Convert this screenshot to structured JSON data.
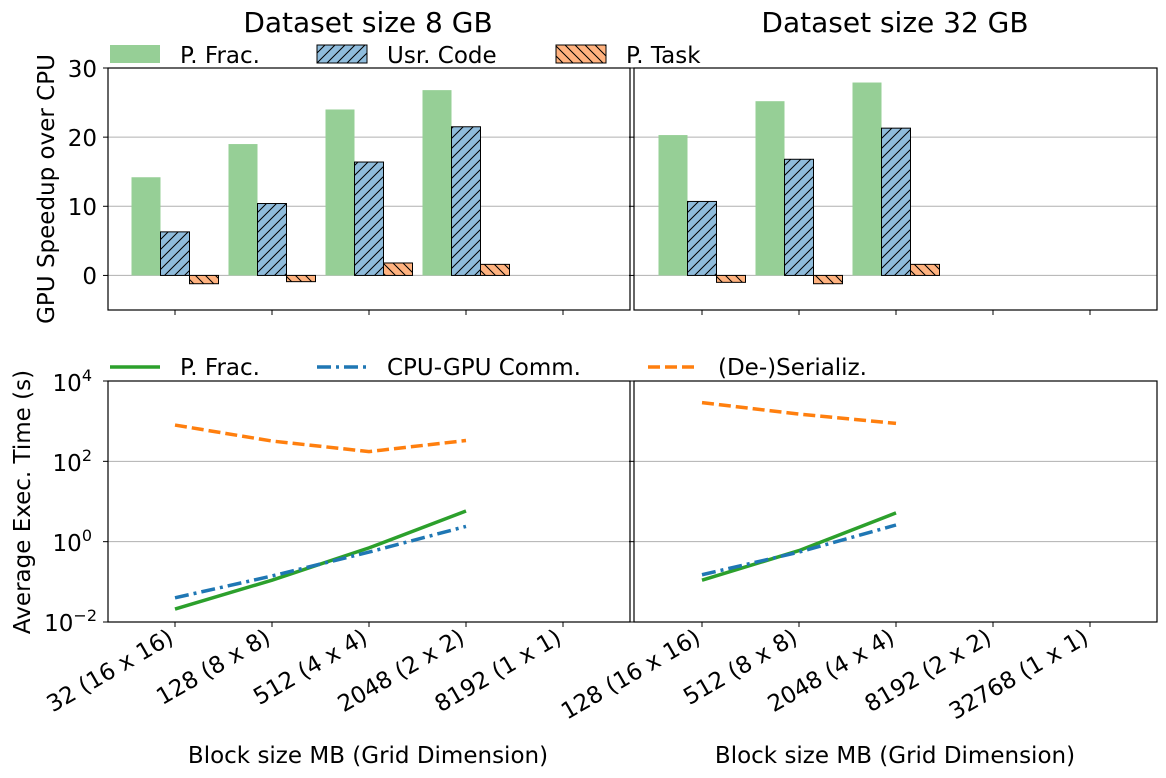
{
  "chart_data": [
    {
      "type": "bar",
      "panel": "top-left",
      "title": "Dataset size 8 GB",
      "ylabel": "GPU Speedup over CPU",
      "ylim": [
        -5,
        30
      ],
      "yticks": [
        0,
        10,
        20,
        30
      ],
      "grid": "y",
      "categories": [
        "32 (16 x 16)",
        "128 (8 x 8)",
        "512 (4 x 4)",
        "2048 (2 x 2)",
        "8192 (1 x 1)"
      ],
      "series": [
        {
          "name": "P. Frac.",
          "values": [
            14.2,
            19.0,
            24.0,
            26.8,
            null
          ],
          "color": "#96cf96",
          "hatch": "none"
        },
        {
          "name": "Usr. Code",
          "values": [
            6.3,
            10.4,
            16.4,
            21.5,
            null
          ],
          "color": "#8fbcdc",
          "hatch": "//"
        },
        {
          "name": "P. Task",
          "values": [
            -1.2,
            -0.9,
            1.8,
            1.6,
            null
          ],
          "color": "#ffb27f",
          "hatch": "\\\\"
        }
      ],
      "legend": "top"
    },
    {
      "type": "bar",
      "panel": "top-right",
      "title": "Dataset size 32 GB",
      "ylim": [
        -5,
        30
      ],
      "grid": "y",
      "categories": [
        "128 (16 x 16)",
        "512 (8 x 8)",
        "2048 (4 x 4)",
        "8192 (2 x 2)",
        "32768 (1 x 1)"
      ],
      "series": [
        {
          "name": "P. Frac.",
          "values": [
            20.3,
            25.2,
            27.9,
            null,
            null
          ],
          "color": "#96cf96",
          "hatch": "none"
        },
        {
          "name": "Usr. Code",
          "values": [
            10.7,
            16.8,
            21.3,
            null,
            null
          ],
          "color": "#8fbcdc",
          "hatch": "//"
        },
        {
          "name": "P. Task",
          "values": [
            -1.0,
            -1.2,
            1.6,
            null,
            null
          ],
          "color": "#ffb27f",
          "hatch": "\\\\"
        }
      ]
    },
    {
      "type": "line",
      "panel": "bottom-left",
      "ylabel": "Average Exec. Time (s)",
      "xlabel": "Block size MB (Grid Dimension)",
      "yscale": "log",
      "ylim": [
        0.01,
        10000
      ],
      "yticks": [
        0.01,
        1,
        100,
        10000
      ],
      "grid": "y",
      "categories": [
        "32 (16 x 16)",
        "128 (8 x 8)",
        "512 (4 x 4)",
        "2048 (2 x 2)",
        "8192 (1 x 1)"
      ],
      "series": [
        {
          "name": "P. Frac.",
          "values": [
            0.021,
            0.11,
            0.7,
            5.8,
            null
          ],
          "color": "#2ca02c",
          "dash": "solid"
        },
        {
          "name": "CPU-GPU Comm.",
          "values": [
            0.04,
            0.14,
            0.55,
            2.4,
            null
          ],
          "color": "#1f77b4",
          "dash": "dashdot"
        },
        {
          "name": "(De-)Serializ.",
          "values": [
            800,
            320,
            175,
            330,
            null
          ],
          "color": "#ff7f0e",
          "dash": "dashed"
        }
      ],
      "legend": "top"
    },
    {
      "type": "line",
      "panel": "bottom-right",
      "xlabel": "Block size MB (Grid Dimension)",
      "yscale": "log",
      "ylim": [
        0.01,
        10000
      ],
      "grid": "y",
      "categories": [
        "128 (16 x 16)",
        "512 (8 x 8)",
        "2048 (4 x 4)",
        "8192 (2 x 2)",
        "32768 (1 x 1)"
      ],
      "series": [
        {
          "name": "P. Frac.",
          "values": [
            0.11,
            0.6,
            5.2,
            null,
            null
          ],
          "color": "#2ca02c",
          "dash": "solid"
        },
        {
          "name": "CPU-GPU Comm.",
          "values": [
            0.15,
            0.55,
            2.6,
            null,
            null
          ],
          "color": "#1f77b4",
          "dash": "dashdot"
        },
        {
          "name": "(De-)Serializ.",
          "values": [
            2900,
            1500,
            880,
            null,
            null
          ],
          "color": "#ff7f0e",
          "dash": "dashed"
        }
      ]
    }
  ],
  "ytick_labels": {
    "top": [
      "0",
      "10",
      "20",
      "30"
    ],
    "bottom": [
      {
        "base": "10",
        "exp": "−2"
      },
      {
        "base": "10",
        "exp": "0"
      },
      {
        "base": "10",
        "exp": "2"
      },
      {
        "base": "10",
        "exp": "4"
      }
    ]
  }
}
